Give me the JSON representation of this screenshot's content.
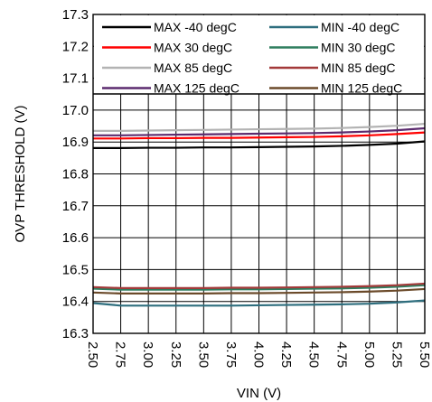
{
  "chart_data": {
    "type": "line",
    "title": "",
    "xlabel": "VIN (V)",
    "ylabel": "OVP THRESHOLD (V)",
    "xlim": [
      2.5,
      5.5
    ],
    "ylim": [
      16.3,
      17.3
    ],
    "xticks": [
      "2.50",
      "2.75",
      "3.00",
      "3.25",
      "3.50",
      "3.75",
      "4.00",
      "4.25",
      "4.50",
      "4.75",
      "5.00",
      "5.25",
      "5.50"
    ],
    "yticks": [
      "16.3",
      "16.4",
      "16.5",
      "16.6",
      "16.7",
      "16.8",
      "16.9",
      "17.0",
      "17.1",
      "17.2",
      "17.3"
    ],
    "grid": true,
    "legend": "top",
    "x": [
      2.5,
      2.75,
      3.0,
      3.25,
      3.5,
      3.75,
      4.0,
      4.25,
      4.5,
      4.75,
      5.0,
      5.25,
      5.5
    ],
    "series": [
      {
        "name": "MAX -40 degC",
        "color": "#000000",
        "values": [
          16.881,
          16.881,
          16.882,
          16.882,
          16.883,
          16.883,
          16.884,
          16.885,
          16.886,
          16.888,
          16.891,
          16.895,
          16.902
        ]
      },
      {
        "name": "MIN -40 degC",
        "color": "#2e6e7e",
        "values": [
          16.395,
          16.387,
          16.387,
          16.387,
          16.387,
          16.387,
          16.388,
          16.389,
          16.39,
          16.391,
          16.393,
          16.397,
          16.403
        ]
      },
      {
        "name": "MAX 30 degC",
        "color": "#ff0000",
        "values": [
          16.911,
          16.911,
          16.912,
          16.912,
          16.913,
          16.913,
          16.914,
          16.915,
          16.916,
          16.918,
          16.921,
          16.925,
          16.93
        ]
      },
      {
        "name": "MIN 30 degC",
        "color": "#2e7d5e",
        "values": [
          16.44,
          16.437,
          16.437,
          16.437,
          16.437,
          16.438,
          16.438,
          16.439,
          16.44,
          16.441,
          16.443,
          16.446,
          16.451
        ]
      },
      {
        "name": "MAX 85 degC",
        "color": "#b3b3b3",
        "values": [
          16.935,
          16.935,
          16.936,
          16.937,
          16.938,
          16.939,
          16.94,
          16.941,
          16.942,
          16.944,
          16.947,
          16.951,
          16.957
        ]
      },
      {
        "name": "MIN 85 degC",
        "color": "#a33a3a",
        "values": [
          16.445,
          16.442,
          16.442,
          16.442,
          16.442,
          16.443,
          16.443,
          16.444,
          16.445,
          16.446,
          16.448,
          16.451,
          16.456
        ]
      },
      {
        "name": "MAX 125 degC",
        "color": "#5b2a6e",
        "values": [
          16.921,
          16.921,
          16.922,
          16.923,
          16.924,
          16.925,
          16.926,
          16.927,
          16.928,
          16.93,
          16.933,
          16.937,
          16.943
        ]
      },
      {
        "name": "MIN 125 degC",
        "color": "#6b4a2a",
        "values": [
          16.428,
          16.425,
          16.425,
          16.425,
          16.425,
          16.426,
          16.426,
          16.427,
          16.428,
          16.429,
          16.431,
          16.434,
          16.439
        ]
      }
    ]
  }
}
